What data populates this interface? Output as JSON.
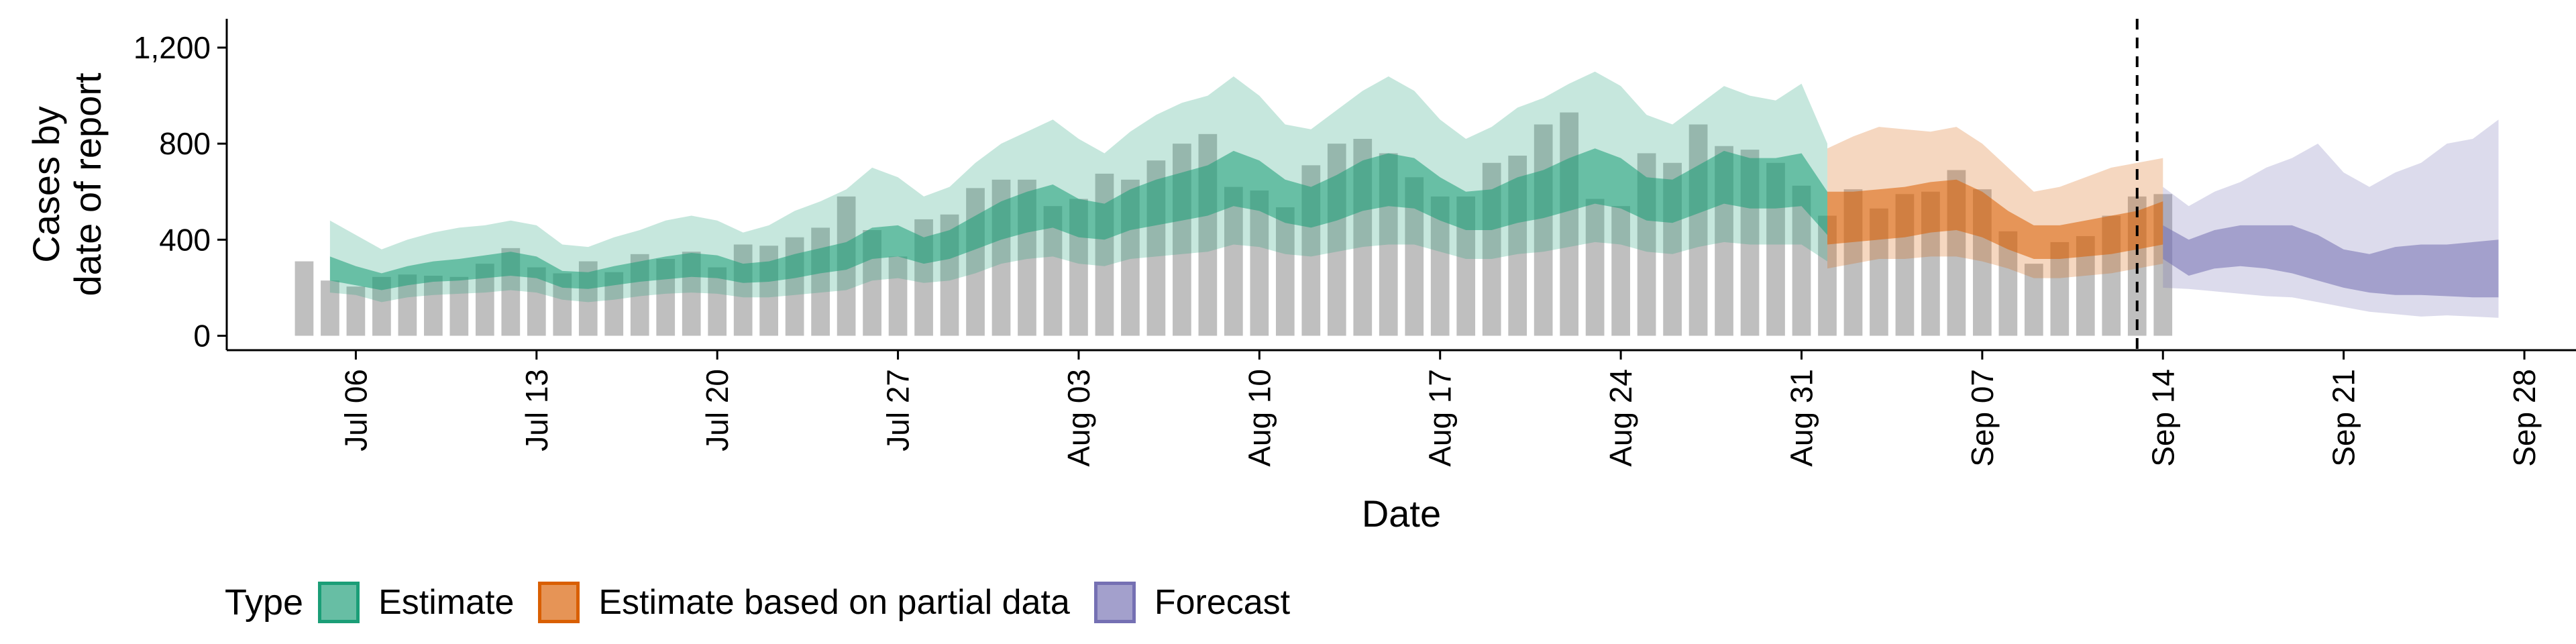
{
  "chart_data": {
    "type": "area",
    "xlabel": "Date",
    "ylabel_lines": [
      "Cases by",
      "date of report"
    ],
    "ylim": [
      -60,
      1320
    ],
    "xlim": [
      "2020-07-01",
      "2020-09-30"
    ],
    "yticks": [
      0,
      400,
      800,
      1200
    ],
    "ytick_labels": [
      "0",
      "400",
      "800",
      "1,200"
    ],
    "xticks": [
      "2020-07-06",
      "2020-07-13",
      "2020-07-20",
      "2020-07-27",
      "2020-08-03",
      "2020-08-10",
      "2020-08-17",
      "2020-08-24",
      "2020-08-31",
      "2020-09-07",
      "2020-09-14",
      "2020-09-21",
      "2020-09-28"
    ],
    "xtick_labels": [
      "Jul 06",
      "Jul 13",
      "Jul 20",
      "Jul 27",
      "Aug 03",
      "Aug 10",
      "Aug 17",
      "Aug 24",
      "Aug 31",
      "Sep 07",
      "Sep 14",
      "Sep 21",
      "Sep 28"
    ],
    "forecast_start": "2020-09-13",
    "bars": {
      "start_date": "2020-07-04",
      "values": [
        310,
        230,
        205,
        245,
        255,
        250,
        245,
        300,
        365,
        285,
        260,
        310,
        265,
        340,
        320,
        350,
        285,
        380,
        375,
        410,
        450,
        580,
        440,
        330,
        485,
        505,
        615,
        650,
        650,
        540,
        570,
        675,
        650,
        730,
        800,
        840,
        620,
        605,
        535,
        710,
        800,
        820,
        760,
        660,
        580,
        580,
        720,
        750,
        880,
        930,
        570,
        540,
        760,
        720,
        880,
        790,
        775,
        720,
        625,
        500,
        610,
        530,
        590,
        600,
        690,
        610,
        435,
        300,
        390,
        415,
        500,
        580,
        590
      ]
    },
    "series": [
      {
        "name": "Estimate",
        "color": "#1b9e77",
        "start_date": "2020-07-05",
        "outer_low": [
          180,
          170,
          140,
          160,
          170,
          175,
          180,
          190,
          180,
          150,
          140,
          150,
          165,
          175,
          180,
          175,
          160,
          160,
          170,
          180,
          190,
          230,
          240,
          220,
          230,
          260,
          300,
          320,
          330,
          300,
          290,
          320,
          330,
          340,
          350,
          380,
          370,
          340,
          330,
          350,
          370,
          380,
          380,
          350,
          320,
          320,
          340,
          350,
          370,
          390,
          380,
          350,
          340,
          370,
          390,
          380,
          380,
          380,
          310
        ],
        "inner_low": [
          230,
          210,
          190,
          210,
          225,
          230,
          240,
          250,
          240,
          200,
          195,
          210,
          225,
          235,
          245,
          240,
          220,
          225,
          240,
          260,
          275,
          320,
          330,
          300,
          320,
          360,
          400,
          430,
          450,
          410,
          400,
          440,
          460,
          480,
          500,
          540,
          520,
          470,
          450,
          480,
          520,
          540,
          530,
          480,
          440,
          440,
          470,
          490,
          520,
          550,
          530,
          480,
          470,
          510,
          550,
          530,
          530,
          540,
          420
        ],
        "inner_high": [
          330,
          290,
          260,
          290,
          310,
          320,
          335,
          350,
          330,
          270,
          265,
          290,
          310,
          330,
          345,
          335,
          300,
          310,
          340,
          365,
          390,
          450,
          460,
          410,
          440,
          500,
          560,
          600,
          630,
          570,
          550,
          610,
          650,
          680,
          710,
          770,
          730,
          650,
          620,
          670,
          730,
          760,
          740,
          660,
          600,
          610,
          660,
          690,
          740,
          780,
          740,
          660,
          650,
          710,
          770,
          740,
          740,
          760,
          600
        ],
        "outer_high": [
          480,
          420,
          360,
          400,
          430,
          450,
          460,
          480,
          460,
          380,
          370,
          410,
          440,
          480,
          500,
          480,
          430,
          460,
          520,
          560,
          610,
          700,
          660,
          580,
          620,
          720,
          800,
          850,
          900,
          820,
          760,
          850,
          920,
          970,
          1000,
          1080,
          1000,
          880,
          860,
          940,
          1020,
          1080,
          1020,
          900,
          820,
          870,
          950,
          990,
          1050,
          1100,
          1040,
          920,
          880,
          960,
          1040,
          1000,
          980,
          1050,
          800
        ]
      },
      {
        "name": "Estimate based on partial data",
        "color": "#d95f02",
        "start_date": "2020-09-01",
        "outer_low": [
          280,
          300,
          320,
          320,
          330,
          330,
          310,
          280,
          240,
          240,
          250,
          260,
          280,
          300
        ],
        "inner_low": [
          380,
          390,
          400,
          410,
          430,
          440,
          410,
          360,
          320,
          320,
          330,
          340,
          360,
          380
        ],
        "inner_high": [
          600,
          600,
          610,
          620,
          640,
          650,
          600,
          520,
          460,
          460,
          480,
          500,
          520,
          560
        ],
        "outer_high": [
          780,
          830,
          870,
          860,
          850,
          870,
          800,
          700,
          600,
          620,
          660,
          700,
          720,
          740
        ]
      },
      {
        "name": "Forecast",
        "color": "#7570b3",
        "start_date": "2020-09-14",
        "outer_low": [
          200,
          195,
          185,
          175,
          165,
          160,
          140,
          120,
          100,
          90,
          80,
          85,
          80,
          75
        ],
        "inner_low": [
          320,
          250,
          280,
          290,
          280,
          260,
          230,
          200,
          180,
          170,
          170,
          165,
          160,
          160
        ],
        "inner_high": [
          460,
          400,
          440,
          460,
          460,
          460,
          420,
          360,
          340,
          370,
          380,
          380,
          390,
          400
        ],
        "outer_high": [
          620,
          540,
          600,
          640,
          700,
          740,
          800,
          680,
          620,
          680,
          720,
          800,
          820,
          900
        ]
      }
    ],
    "legend": {
      "position": "bottom",
      "title": "Type"
    }
  }
}
